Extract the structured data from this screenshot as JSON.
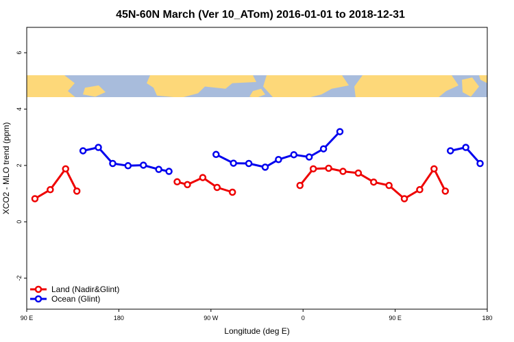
{
  "chart_data": {
    "type": "line",
    "title": "45N-60N March (Ver 10_ATom)   2016-01-01 to 2018-12-31",
    "xlabel": "Longitude (deg E)",
    "ylabel": "XCO2 - MLO trend (ppm)",
    "xlim": [
      90,
      540
    ],
    "ylim": [
      -3.1,
      6.9
    ],
    "x_ticks": [
      {
        "value": 90,
        "label": "90 E"
      },
      {
        "value": 180,
        "label": "180"
      },
      {
        "value": 270,
        "label": "90 W"
      },
      {
        "value": 360,
        "label": "0"
      },
      {
        "value": 450,
        "label": "90 E"
      },
      {
        "value": 540,
        "label": "180"
      }
    ],
    "y_ticks": [
      {
        "value": -2,
        "label": "-2"
      },
      {
        "value": 0,
        "label": "0"
      },
      {
        "value": 2,
        "label": "2"
      },
      {
        "value": 4,
        "label": "4"
      },
      {
        "value": 6,
        "label": "6"
      }
    ],
    "map_band": {
      "ymin": 4.4,
      "ymax": 5.2,
      "ocean_color": "#a8bcdc",
      "land_color": "#fdd879"
    },
    "legend_position": "bottom-left",
    "series": [
      {
        "name": "Land (Nadir&Glint)",
        "color": "#ee0000",
        "segments": [
          [
            [
              98,
              0.82
            ],
            [
              113,
              1.14
            ],
            [
              128,
              1.88
            ],
            [
              139,
              1.09
            ]
          ],
          [
            [
              237,
              1.42
            ],
            [
              247,
              1.32
            ],
            [
              262,
              1.57
            ],
            [
              276,
              1.22
            ],
            [
              291,
              1.05
            ]
          ],
          [
            [
              357,
              1.29
            ],
            [
              370,
              1.88
            ],
            [
              385,
              1.9
            ],
            [
              399,
              1.79
            ],
            [
              414,
              1.73
            ],
            [
              429,
              1.41
            ],
            [
              444,
              1.29
            ],
            [
              459,
              0.82
            ],
            [
              474,
              1.14
            ],
            [
              488,
              1.88
            ],
            [
              499,
              1.09
            ]
          ]
        ]
      },
      {
        "name": "Ocean (Glint)",
        "color": "#0000ee",
        "segments": [
          [
            [
              145,
              2.52
            ],
            [
              160,
              2.64
            ],
            [
              174,
              2.07
            ],
            [
              189,
              1.99
            ],
            [
              204,
              2.01
            ],
            [
              219,
              1.86
            ],
            [
              229,
              1.79
            ]
          ],
          [
            [
              275,
              2.39
            ],
            [
              292,
              2.08
            ],
            [
              307,
              2.07
            ],
            [
              323,
              1.94
            ],
            [
              336,
              2.21
            ],
            [
              351,
              2.38
            ],
            [
              366,
              2.3
            ],
            [
              380,
              2.59
            ],
            [
              396,
              3.2
            ]
          ]
        ]
      },
      {
        "name": "",
        "color": "#0000ee",
        "segments": [
          [
            [
              504,
              2.52
            ],
            [
              519,
              2.64
            ],
            [
              533,
              2.07
            ]
          ]
        ]
      }
    ]
  }
}
